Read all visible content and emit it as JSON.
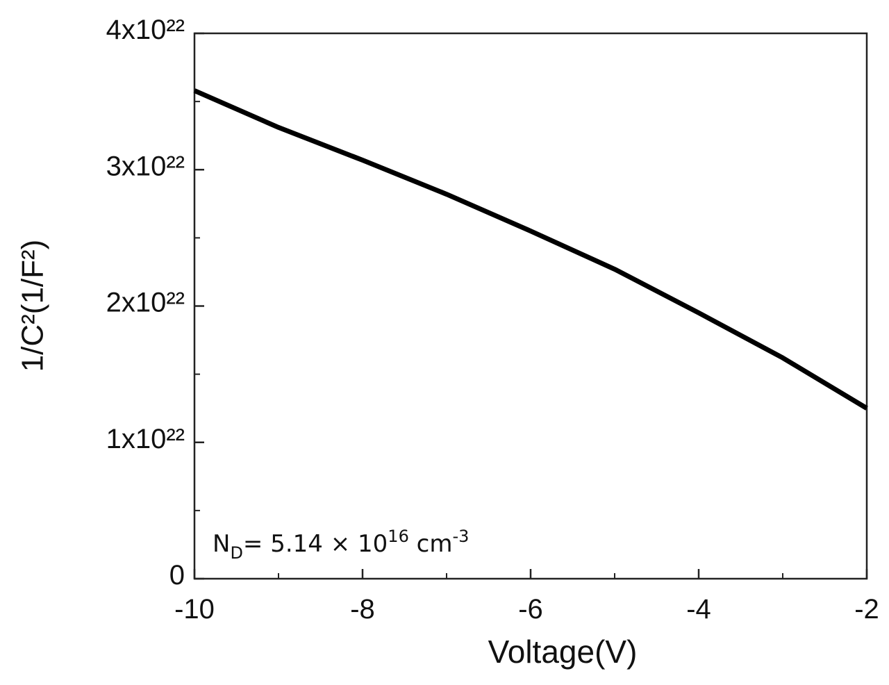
{
  "chart_data": {
    "type": "line",
    "x_label": "Voltage(V)",
    "y_label": "1/C²(1/F²)",
    "annotation": [
      "N",
      "D",
      "= 5.14 × 10",
      "16",
      " cm",
      "-3"
    ],
    "x": [
      -10,
      -9,
      -8,
      -7,
      -6,
      -5,
      -4,
      -3,
      -2
    ],
    "series": [
      {
        "color": "#000000",
        "values": [
          3.58e+22,
          3.31e+22,
          3.07e+22,
          2.82e+22,
          2.55e+22,
          2.27e+22,
          1.95e+22,
          1.62e+22,
          1.25e+22
        ]
      }
    ],
    "xlim": [
      -10,
      -2
    ],
    "ylim": [
      0,
      4e+22
    ],
    "xticks": [
      -10,
      -8,
      -6,
      -4,
      -2
    ],
    "xminorticks": [
      -9,
      -7,
      -5,
      -3
    ],
    "yticks": [
      0,
      {
        "value": 1e+22,
        "label": "1x10²²"
      },
      {
        "value": 2e+22,
        "label": "2x10²²"
      },
      {
        "value": 3e+22,
        "label": "3x10²²"
      },
      {
        "value": 4e+22,
        "label": "4x10²²"
      }
    ],
    "yminorticks": [
      5e+21,
      1.5e+22,
      2.5e+22,
      3.5e+22
    ]
  }
}
